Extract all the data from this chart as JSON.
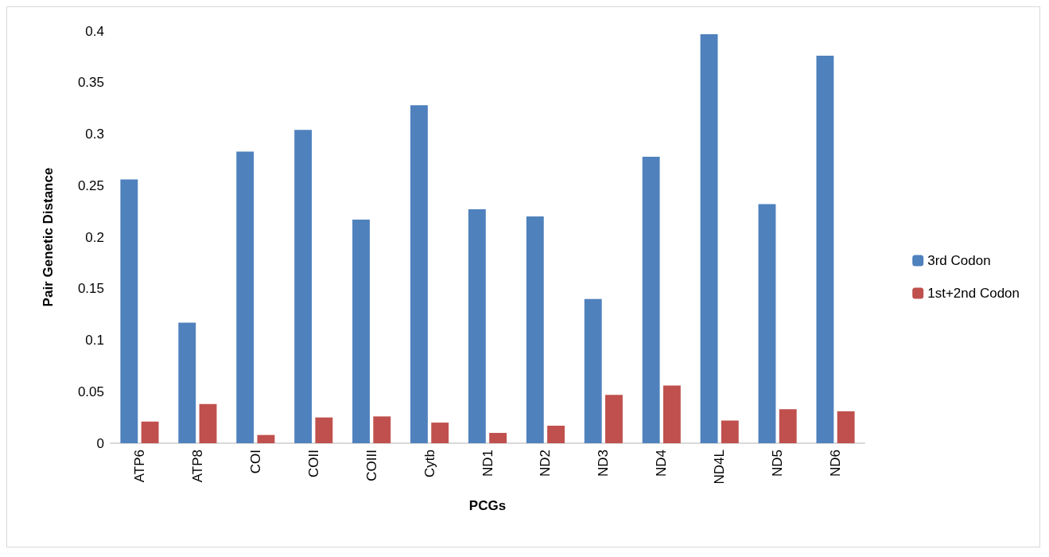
{
  "chart_data": {
    "type": "bar",
    "xlabel": "PCGs",
    "ylabel": "Pair Genetic Distance",
    "categories": [
      "ATP6",
      "ATP8",
      "COI",
      "COII",
      "COIII",
      "Cytb",
      "ND1",
      "ND2",
      "ND3",
      "ND4",
      "ND4L",
      "ND5",
      "ND6"
    ],
    "series": [
      {
        "name": "3rd Codon",
        "color": "#4f81bd",
        "values": [
          0.256,
          0.117,
          0.283,
          0.304,
          0.217,
          0.328,
          0.227,
          0.22,
          0.14,
          0.278,
          0.397,
          0.232,
          0.376
        ]
      },
      {
        "name": "1st+2nd Codon",
        "color": "#c0504d",
        "values": [
          0.021,
          0.038,
          0.008,
          0.025,
          0.026,
          0.02,
          0.01,
          0.017,
          0.047,
          0.056,
          0.022,
          0.033,
          0.031
        ]
      }
    ],
    "ylim": [
      0,
      0.4
    ],
    "yticks": [
      0,
      0.05,
      0.1,
      0.15,
      0.2,
      0.25,
      0.3,
      0.35,
      0.4
    ],
    "grid": false,
    "legend": "right"
  }
}
